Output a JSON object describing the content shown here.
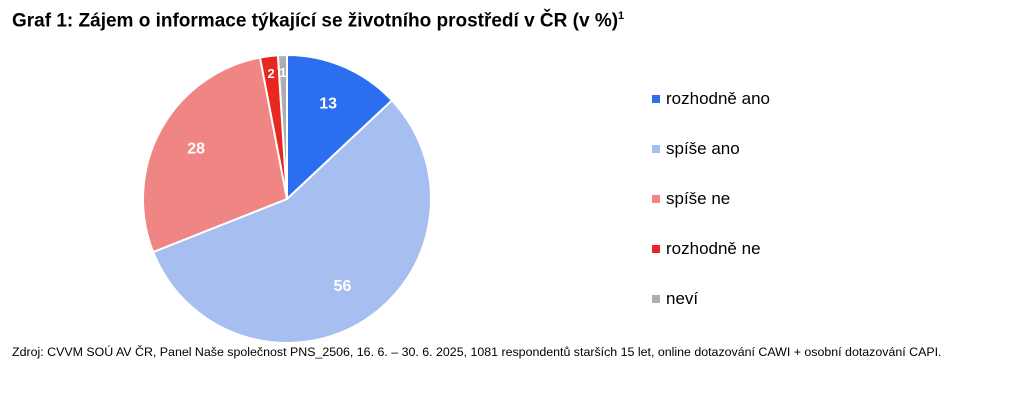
{
  "title": {
    "text": "Graf 1: Zájem o informace týkající se životního prostředí v ČR (v %)",
    "superscript": "1"
  },
  "chart_data": {
    "type": "pie",
    "categories": [
      "rozhodně ano",
      "spíše ano",
      "spíše ne",
      "rozhodně ne",
      "neví"
    ],
    "values": [
      13,
      56,
      28,
      2,
      1
    ],
    "data_labels": [
      "13",
      "56",
      "28",
      "2",
      "1"
    ],
    "colors": [
      "#2b6ef0",
      "#a6bff0",
      "#ef8683",
      "#e8281e",
      "#aeaeae"
    ],
    "label_colors": [
      "#ffffff",
      "#ffffff",
      "#ffffff",
      "#ffffff",
      "#ffffff"
    ],
    "legend_position": "right"
  },
  "source": "Zdroj: CVVM SOÚ AV ČR, Panel Naše společnost PNS_2506, 16. 6. – 30. 6. 2025, 1081 respondentů starších 15 let, online dotazování CAWI + osobní dotazování CAPI."
}
